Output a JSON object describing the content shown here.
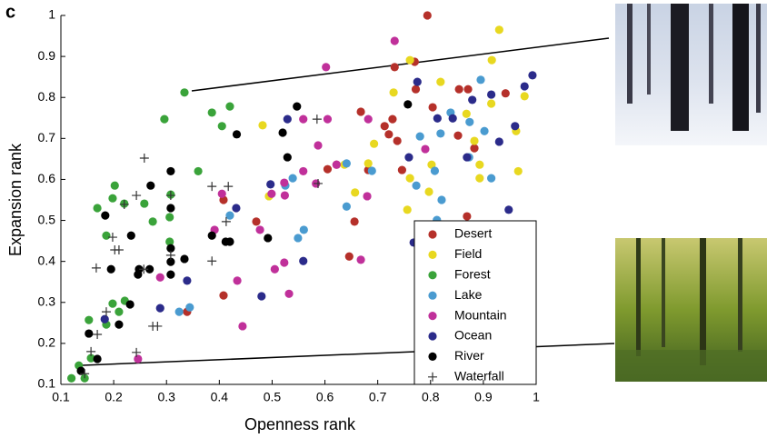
{
  "chart_data": {
    "type": "scatter",
    "panel_label": "c",
    "xlabel": "Openness rank",
    "ylabel": "Expansion rank",
    "xlim": [
      0.1,
      1
    ],
    "ylim": [
      0.1,
      1
    ],
    "xticks": [
      0.1,
      0.2,
      0.3,
      0.4,
      0.5,
      0.6,
      0.7,
      0.8,
      0.9,
      1
    ],
    "yticks": [
      0.1,
      0.2,
      0.3,
      0.4,
      0.5,
      0.6,
      0.7,
      0.8,
      0.9,
      1
    ],
    "legend": "lower right",
    "series": [
      {
        "name": "Desert",
        "color": "#b5302a",
        "marker": "circle",
        "x": [
          0.794,
          0.732,
          0.77,
          0.772,
          0.854,
          0.871,
          0.942,
          0.668,
          0.728,
          0.713,
          0.721,
          0.737,
          0.883,
          0.682,
          0.746,
          0.852,
          0.622,
          0.656,
          0.646,
          0.408,
          0.408,
          0.339,
          0.47,
          0.869,
          0.605,
          0.804
        ],
        "values": [
          1.0,
          0.874,
          0.887,
          0.82,
          0.82,
          0.82,
          0.81,
          0.765,
          0.747,
          0.73,
          0.71,
          0.694,
          0.676,
          0.623,
          0.623,
          0.707,
          0.636,
          0.497,
          0.412,
          0.55,
          0.317,
          0.277,
          0.497,
          0.51,
          0.625,
          0.776
        ]
      },
      {
        "name": "Field",
        "color": "#e8d820",
        "marker": "circle",
        "x": [
          0.93,
          0.761,
          0.916,
          0.819,
          0.73,
          0.978,
          0.868,
          0.915,
          0.482,
          0.962,
          0.883,
          0.693,
          0.682,
          0.893,
          0.802,
          0.966,
          0.761,
          0.893,
          0.494,
          0.657,
          0.797,
          0.756,
          0.637
        ],
        "values": [
          0.965,
          0.891,
          0.891,
          0.838,
          0.812,
          0.803,
          0.76,
          0.785,
          0.732,
          0.718,
          0.694,
          0.687,
          0.639,
          0.636,
          0.636,
          0.62,
          0.603,
          0.603,
          0.559,
          0.568,
          0.57,
          0.526,
          0.636
        ]
      },
      {
        "name": "Forest",
        "color": "#3aa33a",
        "marker": "circle",
        "x": [
          0.334,
          0.42,
          0.386,
          0.296,
          0.405,
          0.36,
          0.202,
          0.308,
          0.198,
          0.22,
          0.258,
          0.169,
          0.306,
          0.274,
          0.186,
          0.306,
          0.198,
          0.221,
          0.21,
          0.153,
          0.186,
          0.157,
          0.134,
          0.12,
          0.145
        ],
        "values": [
          0.812,
          0.778,
          0.763,
          0.747,
          0.73,
          0.62,
          0.585,
          0.563,
          0.554,
          0.541,
          0.541,
          0.53,
          0.508,
          0.497,
          0.463,
          0.448,
          0.297,
          0.304,
          0.277,
          0.257,
          0.246,
          0.164,
          0.146,
          0.115,
          0.115
        ]
      },
      {
        "name": "Lake",
        "color": "#4a9bd0",
        "marker": "circle",
        "x": [
          0.895,
          0.838,
          0.874,
          0.819,
          0.902,
          0.873,
          0.78,
          0.689,
          0.641,
          0.773,
          0.808,
          0.915,
          0.821,
          0.539,
          0.525,
          0.641,
          0.42,
          0.549,
          0.56,
          0.344,
          0.324,
          0.812
        ],
        "values": [
          0.843,
          0.763,
          0.74,
          0.712,
          0.718,
          0.654,
          0.705,
          0.621,
          0.639,
          0.585,
          0.621,
          0.603,
          0.55,
          0.603,
          0.585,
          0.534,
          0.512,
          0.457,
          0.477,
          0.288,
          0.277,
          0.501
        ]
      },
      {
        "name": "Mountain",
        "color": "#c0309a",
        "marker": "circle",
        "x": [
          0.732,
          0.602,
          0.605,
          0.559,
          0.587,
          0.682,
          0.79,
          0.622,
          0.559,
          0.583,
          0.523,
          0.524,
          0.499,
          0.405,
          0.391,
          0.477,
          0.523,
          0.505,
          0.68,
          0.668,
          0.532,
          0.434,
          0.444,
          0.246,
          0.288
        ],
        "values": [
          0.938,
          0.874,
          0.747,
          0.747,
          0.683,
          0.747,
          0.674,
          0.636,
          0.62,
          0.59,
          0.592,
          0.561,
          0.565,
          0.565,
          0.477,
          0.477,
          0.397,
          0.381,
          0.559,
          0.404,
          0.321,
          0.353,
          0.242,
          0.162,
          0.361
        ]
      },
      {
        "name": "Ocean",
        "color": "#2b2b8a",
        "marker": "circle",
        "x": [
          0.993,
          0.978,
          0.879,
          0.915,
          0.529,
          0.813,
          0.842,
          0.775,
          0.96,
          0.93,
          0.869,
          0.759,
          0.497,
          0.432,
          0.948,
          0.339,
          0.288,
          0.183,
          0.48,
          0.768,
          0.559
        ],
        "values": [
          0.854,
          0.827,
          0.794,
          0.807,
          0.747,
          0.749,
          0.749,
          0.838,
          0.73,
          0.692,
          0.654,
          0.654,
          0.588,
          0.53,
          0.526,
          0.353,
          0.286,
          0.259,
          0.315,
          0.446,
          0.401
        ]
      },
      {
        "name": "River",
        "color": "#000000",
        "marker": "circle",
        "x": [
          0.547,
          0.433,
          0.52,
          0.757,
          0.308,
          0.529,
          0.27,
          0.308,
          0.184,
          0.233,
          0.386,
          0.412,
          0.42,
          0.492,
          0.308,
          0.248,
          0.268,
          0.195,
          0.246,
          0.308,
          0.334,
          0.231,
          0.21,
          0.153,
          0.169,
          0.138,
          0.308
        ],
        "values": [
          0.778,
          0.71,
          0.714,
          0.783,
          0.62,
          0.654,
          0.585,
          0.53,
          0.512,
          0.463,
          0.463,
          0.448,
          0.448,
          0.457,
          0.432,
          0.381,
          0.381,
          0.381,
          0.368,
          0.399,
          0.406,
          0.295,
          0.246,
          0.224,
          0.162,
          0.133,
          0.368
        ]
      },
      {
        "name": "Waterfall",
        "color": "#333333",
        "marker": "plus",
        "x": [
          0.258,
          0.585,
          0.308,
          0.243,
          0.22,
          0.386,
          0.417,
          0.587,
          0.413,
          0.198,
          0.202,
          0.21,
          0.308,
          0.386,
          0.167,
          0.257,
          0.186,
          0.283,
          0.274,
          0.169,
          0.157,
          0.243,
          0.145
        ],
        "values": [
          0.652,
          0.747,
          0.561,
          0.561,
          0.539,
          0.583,
          0.583,
          0.59,
          0.497,
          0.459,
          0.428,
          0.428,
          0.415,
          0.401,
          0.384,
          0.381,
          0.277,
          0.242,
          0.242,
          0.222,
          0.18,
          0.178,
          0.126
        ]
      }
    ]
  }
}
